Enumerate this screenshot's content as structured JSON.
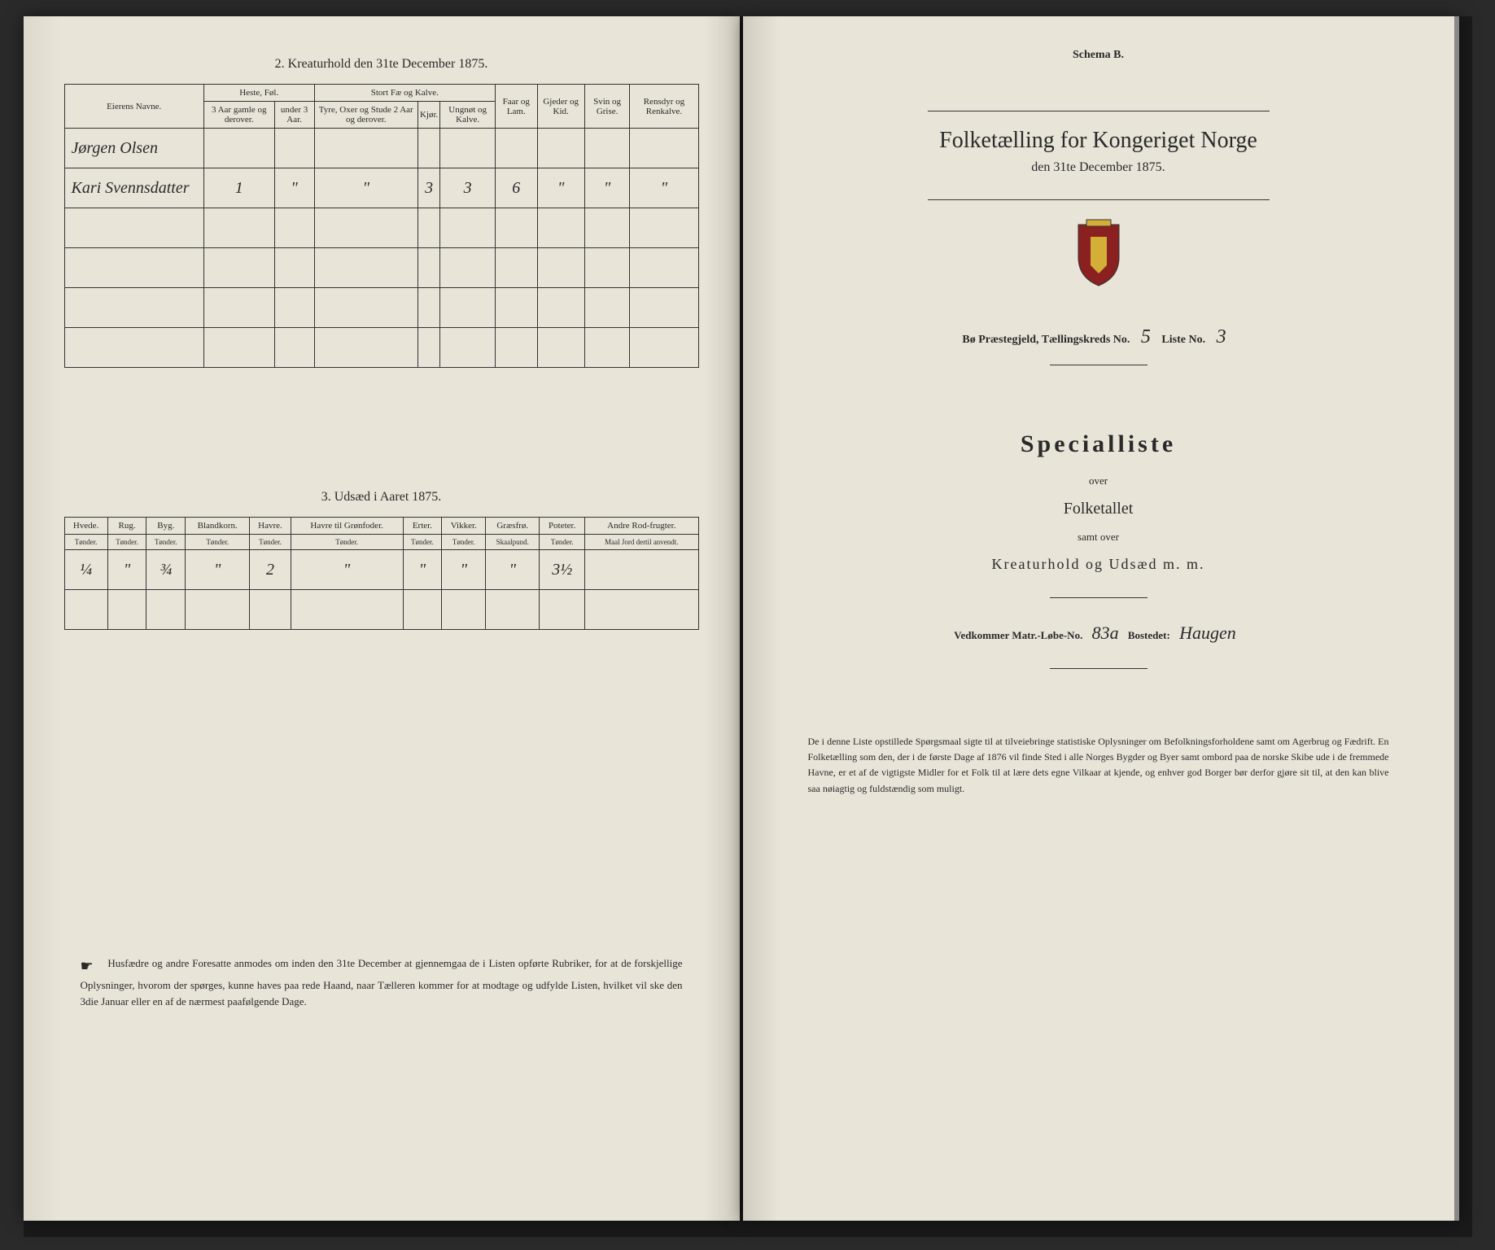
{
  "left": {
    "section2_title": "2. Kreaturhold den 31te December 1875.",
    "table2": {
      "col_owner": "Eierens Navne.",
      "grp_heste": "Heste, Føl.",
      "grp_stort": "Stort Fæ og Kalve.",
      "grp_faar": "Faar og Lam.",
      "grp_gjeder": "Gjeder og Kid.",
      "grp_svin": "Svin og Grise.",
      "grp_rensdyr": "Rensdyr og Renkalve.",
      "sub_heste1": "3 Aar gamle og derover.",
      "sub_heste2": "under 3 Aar.",
      "sub_stort1": "Tyre, Oxer og Stude 2 Aar og derover.",
      "sub_stort2": "Kjør.",
      "sub_stort3": "Ungnøt og Kalve.",
      "rows": [
        {
          "owner": "Jørgen Olsen",
          "c1": "",
          "c2": "",
          "c3": "",
          "c4": "",
          "c5": "",
          "c6": "",
          "c7": "",
          "c8": "",
          "c9": ""
        },
        {
          "owner": "Kari Svennsdatter",
          "c1": "1",
          "c2": "\"",
          "c3": "\"",
          "c4": "3",
          "c5": "3",
          "c6": "6",
          "c7": "\"",
          "c8": "\"",
          "c9": "\""
        }
      ]
    },
    "section3_title": "3. Udsæd i Aaret 1875.",
    "table3": {
      "cols": [
        "Hvede.",
        "Rug.",
        "Byg.",
        "Blandkorn.",
        "Havre.",
        "Havre til Grønfoder.",
        "Erter.",
        "Vikker.",
        "Græsfrø.",
        "Poteter.",
        "Andre Rod-frugter."
      ],
      "units": [
        "Tønder.",
        "Tønder.",
        "Tønder.",
        "Tønder.",
        "Tønder.",
        "Tønder.",
        "Tønder.",
        "Tønder.",
        "Skaalpund.",
        "Tønder.",
        "Maal Jord dertil anvendt."
      ],
      "row": [
        "¼",
        "\"",
        "¾",
        "\"",
        "2",
        "\"",
        "\"",
        "\"",
        "\"",
        "3½",
        ""
      ]
    },
    "instruction": "Husfædre og andre Foresatte anmodes om inden den 31te December at gjennemgaa de i Listen opførte Rubriker, for at de forskjellige Oplysninger, hvorom der spørges, kunne haves paa rede Haand, naar Tælleren kommer for at modtage og udfylde Listen, hvilket vil ske den 3die Januar eller en af de nærmest paafølgende Dage."
  },
  "right": {
    "schema": "Schema B.",
    "main_title": "Folketælling for Kongeriget Norge",
    "sub_date": "den 31te December 1875.",
    "field_prefix": "Bø Præstegjeld, Tællingskreds No.",
    "kreds_no": "5",
    "liste_label": "Liste No.",
    "liste_no": "3",
    "spec": "Specialliste",
    "over": "over",
    "folketallet": "Folketallet",
    "samt": "samt over",
    "kreatur": "Kreaturhold og Udsæd m. m.",
    "vedkommer_label": "Vedkommer Matr.-Løbe-No.",
    "matr_no": "83a",
    "bostedet_label": "Bostedet:",
    "bostedet": "Haugen",
    "bottom": "De i denne Liste opstillede Spørgsmaal sigte til at tilveiebringe statistiske Oplysninger om Befolkningsforholdene samt om Agerbrug og Fædrift. En Folketælling som den, der i de første Dage af 1876 vil finde Sted i alle Norges Bygder og Byer samt ombord paa de norske Skibe ude i de fremmede Havne, er et af de vigtigste Midler for et Folk til at lære dets egne Vilkaar at kjende, og enhver god Borger bør derfor gjøre sit til, at den kan blive saa nøiagtig og fuldstændig som muligt."
  }
}
